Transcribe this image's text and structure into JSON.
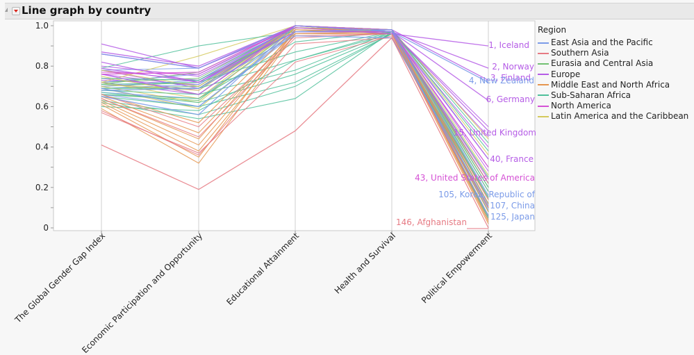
{
  "panel": {
    "title": "Line graph by country"
  },
  "chart_data": {
    "type": "line",
    "title": "Line graph by country",
    "xlabel": "",
    "ylabel": "",
    "ylim": [
      0,
      1.0
    ],
    "yticks": [
      "0",
      "0.2",
      "0.4",
      "0.6",
      "0.8",
      "1.0"
    ],
    "ytick_values": [
      0,
      0.2,
      0.4,
      0.6,
      0.8,
      1.0
    ],
    "grid": false,
    "categories": [
      "The Global Gender Gap Index",
      "Economic Participation and Opportunity",
      "Educational Attainment",
      "Health and Survival",
      "Political Empowerment"
    ],
    "legend": {
      "title": "Region",
      "placement": "right",
      "entries": [
        {
          "name": "East Asia and the Pacific",
          "color": "#7b9be8"
        },
        {
          "name": "Southern Asia",
          "color": "#e67a83"
        },
        {
          "name": "Eurasia and Central Asia",
          "color": "#72c172"
        },
        {
          "name": "Europe",
          "color": "#b55ce6"
        },
        {
          "name": "Middle East and North Africa",
          "color": "#e5954e"
        },
        {
          "name": "Sub-Saharan Africa",
          "color": "#4fbf9a"
        },
        {
          "name": "North America",
          "color": "#d552d5"
        },
        {
          "name": "Latin America and the Caribbean",
          "color": "#d4c95c"
        }
      ]
    },
    "labeled_series": [
      {
        "name": "1, Iceland",
        "region": "Europe",
        "values": [
          0.91,
          0.79,
          0.99,
          0.96,
          0.9
        ]
      },
      {
        "name": "2, Norway",
        "region": "Europe",
        "values": [
          0.87,
          0.8,
          1.0,
          0.97,
          0.79
        ]
      },
      {
        "name": "3, Finland",
        "region": "Europe",
        "values": [
          0.86,
          0.79,
          1.0,
          0.98,
          0.73
        ]
      },
      {
        "name": "4, New Zealand",
        "region": "East Asia and the Pacific",
        "values": [
          0.86,
          0.79,
          1.0,
          0.97,
          0.72
        ]
      },
      {
        "name": "6, Germany",
        "region": "Europe",
        "values": [
          0.82,
          0.72,
          0.97,
          0.97,
          0.63
        ]
      },
      {
        "name": "15, United Kingdom",
        "region": "Europe",
        "values": [
          0.79,
          0.72,
          1.0,
          0.97,
          0.48
        ]
      },
      {
        "name": "40, France",
        "region": "Europe",
        "values": [
          0.76,
          0.66,
          1.0,
          0.97,
          0.34
        ]
      },
      {
        "name": "43, United States of America",
        "region": "North America",
        "values": [
          0.76,
          0.77,
          1.0,
          0.97,
          0.24
        ]
      },
      {
        "name": "105, Korea, Republic of",
        "region": "East Asia and the Pacific",
        "values": [
          0.69,
          0.6,
          0.97,
          0.98,
          0.16
        ]
      },
      {
        "name": "107, China",
        "region": "East Asia and the Pacific",
        "values": [
          0.68,
          0.69,
          0.95,
          0.94,
          0.11
        ]
      },
      {
        "name": "125, Japan",
        "region": "East Asia and the Pacific",
        "values": [
          0.65,
          0.56,
          1.0,
          0.97,
          0.06
        ]
      },
      {
        "name": "146, Afghanistan",
        "region": "Southern Asia",
        "values": [
          0.41,
          0.19,
          0.48,
          0.94,
          0.0
        ]
      }
    ],
    "background_series_note": "Remaining countries drawn as unlabeled lines colored by region",
    "background_series": [
      {
        "region": "Europe",
        "values": [
          0.8,
          0.75,
          0.99,
          0.97,
          0.45
        ]
      },
      {
        "region": "Europe",
        "values": [
          0.78,
          0.73,
          1.0,
          0.97,
          0.4
        ]
      },
      {
        "region": "Europe",
        "values": [
          0.76,
          0.7,
          0.99,
          0.97,
          0.3
        ]
      },
      {
        "region": "Europe",
        "values": [
          0.74,
          0.68,
          1.0,
          0.98,
          0.22
        ]
      },
      {
        "region": "Europe",
        "values": [
          0.72,
          0.66,
          0.99,
          0.97,
          0.18
        ]
      },
      {
        "region": "Europe",
        "values": [
          0.78,
          0.69,
          1.0,
          0.97,
          0.5
        ]
      },
      {
        "region": "Europe",
        "values": [
          0.73,
          0.71,
          1.0,
          0.98,
          0.28
        ]
      },
      {
        "region": "Eurasia and Central Asia",
        "values": [
          0.72,
          0.74,
          1.0,
          0.98,
          0.15
        ]
      },
      {
        "region": "Eurasia and Central Asia",
        "values": [
          0.7,
          0.72,
          0.99,
          0.98,
          0.12
        ]
      },
      {
        "region": "Eurasia and Central Asia",
        "values": [
          0.69,
          0.7,
          1.0,
          0.97,
          0.1
        ]
      },
      {
        "region": "Eurasia and Central Asia",
        "values": [
          0.71,
          0.77,
          1.0,
          0.98,
          0.2
        ]
      },
      {
        "region": "Eurasia and Central Asia",
        "values": [
          0.68,
          0.69,
          0.99,
          0.98,
          0.08
        ]
      },
      {
        "region": "Eurasia and Central Asia",
        "values": [
          0.66,
          0.63,
          0.99,
          0.97,
          0.05
        ]
      },
      {
        "region": "East Asia and the Pacific",
        "values": [
          0.78,
          0.79,
          1.0,
          0.98,
          0.34
        ]
      },
      {
        "region": "East Asia and the Pacific",
        "values": [
          0.72,
          0.76,
          0.99,
          0.97,
          0.22
        ]
      },
      {
        "region": "East Asia and the Pacific",
        "values": [
          0.7,
          0.73,
          1.0,
          0.97,
          0.14
        ]
      },
      {
        "region": "East Asia and the Pacific",
        "values": [
          0.69,
          0.71,
          0.98,
          0.96,
          0.12
        ]
      },
      {
        "region": "East Asia and the Pacific",
        "values": [
          0.67,
          0.64,
          0.97,
          0.97,
          0.09
        ]
      },
      {
        "region": "East Asia and the Pacific",
        "values": [
          0.66,
          0.6,
          0.96,
          0.97,
          0.04
        ]
      },
      {
        "region": "Latin America and the Caribbean",
        "values": [
          0.78,
          0.7,
          1.0,
          0.98,
          0.44
        ]
      },
      {
        "region": "Latin America and the Caribbean",
        "values": [
          0.75,
          0.66,
          1.0,
          0.98,
          0.36
        ]
      },
      {
        "region": "Latin America and the Caribbean",
        "values": [
          0.72,
          0.64,
          1.0,
          0.98,
          0.26
        ]
      },
      {
        "region": "Latin America and the Caribbean",
        "values": [
          0.71,
          0.68,
          0.99,
          0.98,
          0.2
        ]
      },
      {
        "region": "Latin America and the Caribbean",
        "values": [
          0.7,
          0.62,
          1.0,
          0.98,
          0.18
        ]
      },
      {
        "region": "Latin America and the Caribbean",
        "values": [
          0.69,
          0.59,
          0.99,
          0.97,
          0.14
        ]
      },
      {
        "region": "Latin America and the Caribbean",
        "values": [
          0.72,
          0.85,
          1.0,
          0.98,
          0.14
        ]
      },
      {
        "region": "Sub-Saharan Africa",
        "values": [
          0.79,
          0.9,
          0.97,
          0.98,
          0.42
        ]
      },
      {
        "region": "Sub-Saharan Africa",
        "values": [
          0.74,
          0.73,
          0.97,
          0.98,
          0.38
        ]
      },
      {
        "region": "Sub-Saharan Africa",
        "values": [
          0.71,
          0.72,
          0.87,
          0.97,
          0.25
        ]
      },
      {
        "region": "Sub-Saharan Africa",
        "values": [
          0.69,
          0.69,
          0.83,
          0.97,
          0.22
        ]
      },
      {
        "region": "Sub-Saharan Africa",
        "values": [
          0.68,
          0.66,
          0.78,
          0.97,
          0.18
        ]
      },
      {
        "region": "Sub-Saharan Africa",
        "values": [
          0.67,
          0.62,
          0.76,
          0.96,
          0.15
        ]
      },
      {
        "region": "Sub-Saharan Africa",
        "values": [
          0.65,
          0.6,
          0.72,
          0.96,
          0.12
        ]
      },
      {
        "region": "Sub-Saharan Africa",
        "values": [
          0.63,
          0.56,
          0.7,
          0.96,
          0.1
        ]
      },
      {
        "region": "Sub-Saharan Africa",
        "values": [
          0.62,
          0.54,
          0.64,
          0.97,
          0.08
        ]
      },
      {
        "region": "Sub-Saharan Africa",
        "values": [
          0.6,
          0.58,
          0.83,
          0.96,
          0.05
        ]
      },
      {
        "region": "Sub-Saharan Africa",
        "values": [
          0.66,
          0.64,
          0.92,
          0.97,
          0.2
        ]
      },
      {
        "region": "Middle East and North Africa",
        "values": [
          0.65,
          0.47,
          0.97,
          0.97,
          0.1
        ]
      },
      {
        "region": "Middle East and North Africa",
        "values": [
          0.64,
          0.44,
          0.98,
          0.96,
          0.08
        ]
      },
      {
        "region": "Middle East and North Africa",
        "values": [
          0.63,
          0.41,
          0.97,
          0.97,
          0.06
        ]
      },
      {
        "region": "Middle East and North Africa",
        "values": [
          0.62,
          0.38,
          0.96,
          0.97,
          0.04
        ]
      },
      {
        "region": "Middle East and North Africa",
        "values": [
          0.61,
          0.35,
          0.98,
          0.97,
          0.03
        ]
      },
      {
        "region": "Middle East and North Africa",
        "values": [
          0.59,
          0.32,
          0.96,
          0.96,
          0.02
        ]
      },
      {
        "region": "Middle East and North Africa",
        "values": [
          0.66,
          0.52,
          0.99,
          0.97,
          0.12
        ]
      },
      {
        "region": "Southern Asia",
        "values": [
          0.66,
          0.5,
          0.95,
          0.96,
          0.22
        ]
      },
      {
        "region": "Southern Asia",
        "values": [
          0.64,
          0.45,
          0.94,
          0.96,
          0.14
        ]
      },
      {
        "region": "Southern Asia",
        "values": [
          0.58,
          0.36,
          0.91,
          0.94,
          0.1
        ]
      },
      {
        "region": "Southern Asia",
        "values": [
          0.57,
          0.37,
          0.82,
          0.95,
          0.06
        ]
      },
      {
        "region": "North America",
        "values": [
          0.77,
          0.76,
          1.0,
          0.97,
          0.3
        ]
      }
    ]
  }
}
